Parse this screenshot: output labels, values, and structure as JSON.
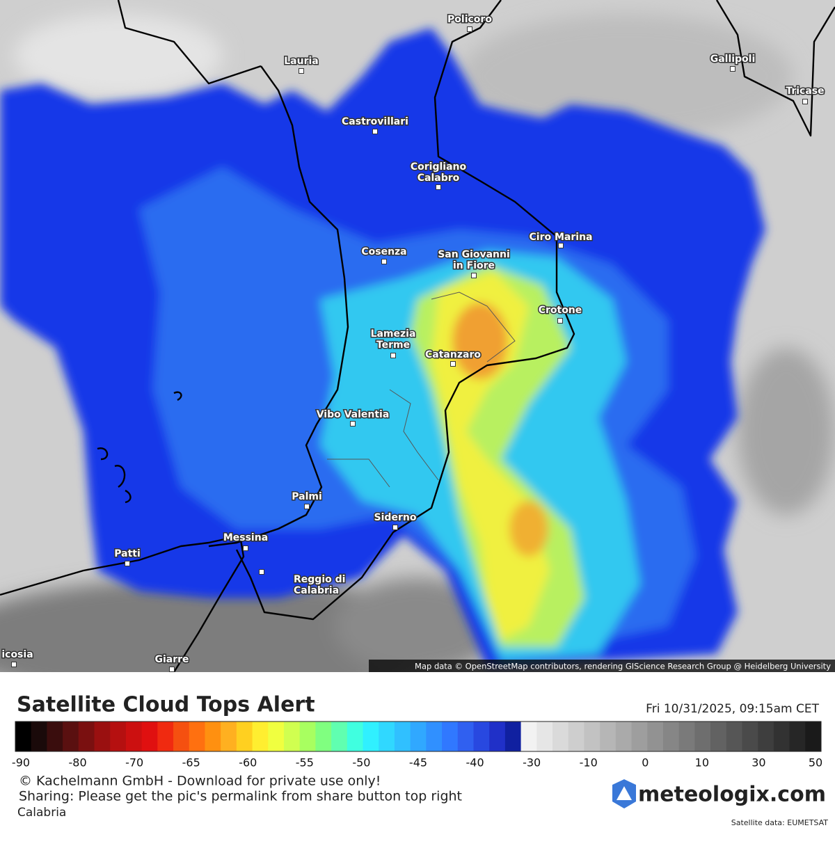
{
  "map": {
    "cities": [
      {
        "lines": [
          "Policoro"
        ]
      },
      {
        "lines": [
          "Lauria"
        ]
      },
      {
        "lines": [
          "Gallipoli"
        ]
      },
      {
        "lines": [
          "Tricase"
        ]
      },
      {
        "lines": [
          "Castrovillari"
        ]
      },
      {
        "lines": [
          "Corigliano",
          "Calabro"
        ]
      },
      {
        "lines": [
          "Ciro Marina"
        ]
      },
      {
        "lines": [
          "Cosenza"
        ]
      },
      {
        "lines": [
          "San Giovanni",
          "in Fiore"
        ]
      },
      {
        "lines": [
          "Crotone"
        ]
      },
      {
        "lines": [
          "Lamezia",
          "Terme"
        ]
      },
      {
        "lines": [
          "Catanzaro"
        ]
      },
      {
        "lines": [
          "Vibo Valentia"
        ]
      },
      {
        "lines": [
          "Palmi"
        ]
      },
      {
        "lines": [
          "Siderno"
        ]
      },
      {
        "lines": [
          "Messina"
        ]
      },
      {
        "lines": [
          "Patti"
        ]
      },
      {
        "lines": [
          "Reggio di",
          "Calabria"
        ]
      },
      {
        "lines": [
          "icosia"
        ]
      },
      {
        "lines": [
          "Giarre"
        ]
      }
    ],
    "attribution": "Map data © OpenStreetMap contributors, rendering GIScience Research Group @ Heidelberg University"
  },
  "legend": {
    "title": "Satellite Cloud Tops Alert",
    "datetime": "Fri 10/31/2025, 09:15am CET",
    "colors": [
      "#000000",
      "#1a0a0a",
      "#3a0d0d",
      "#5a1010",
      "#7a1010",
      "#9a1010",
      "#b51010",
      "#cc1010",
      "#e01010",
      "#f02a10",
      "#f55010",
      "#ff7010",
      "#ff9010",
      "#ffb020",
      "#ffd020",
      "#ffee30",
      "#f0ff40",
      "#d0ff50",
      "#a8ff60",
      "#80ff80",
      "#60ffb0",
      "#40ffe0",
      "#30f0ff",
      "#30d8ff",
      "#30c0ff",
      "#30a8ff",
      "#3090ff",
      "#3078ff",
      "#3060f0",
      "#2848e0",
      "#2030c8",
      "#1020a0",
      "#f2f2f2",
      "#e6e6e6",
      "#dadada",
      "#cecece",
      "#c2c2c2",
      "#b6b6b6",
      "#aaaaaa",
      "#9e9e9e",
      "#929292",
      "#868686",
      "#7a7a7a",
      "#6e6e6e",
      "#626262",
      "#565656",
      "#4a4a4a",
      "#3e3e3e",
      "#323232",
      "#262626",
      "#1a1a1a"
    ],
    "ticks": [
      -90,
      -80,
      -70,
      -65,
      -60,
      -55,
      -50,
      -45,
      -40,
      -30,
      -10,
      0,
      10,
      30,
      50
    ]
  },
  "footer": {
    "copyright": "© Kachelmann GmbH - Download for private use only!",
    "sharing": "Sharing: Please get the pic's permalink from share button top right",
    "region": "Calabria",
    "brand": "meteologix.com",
    "source": "Satellite data: EUMETSAT"
  }
}
